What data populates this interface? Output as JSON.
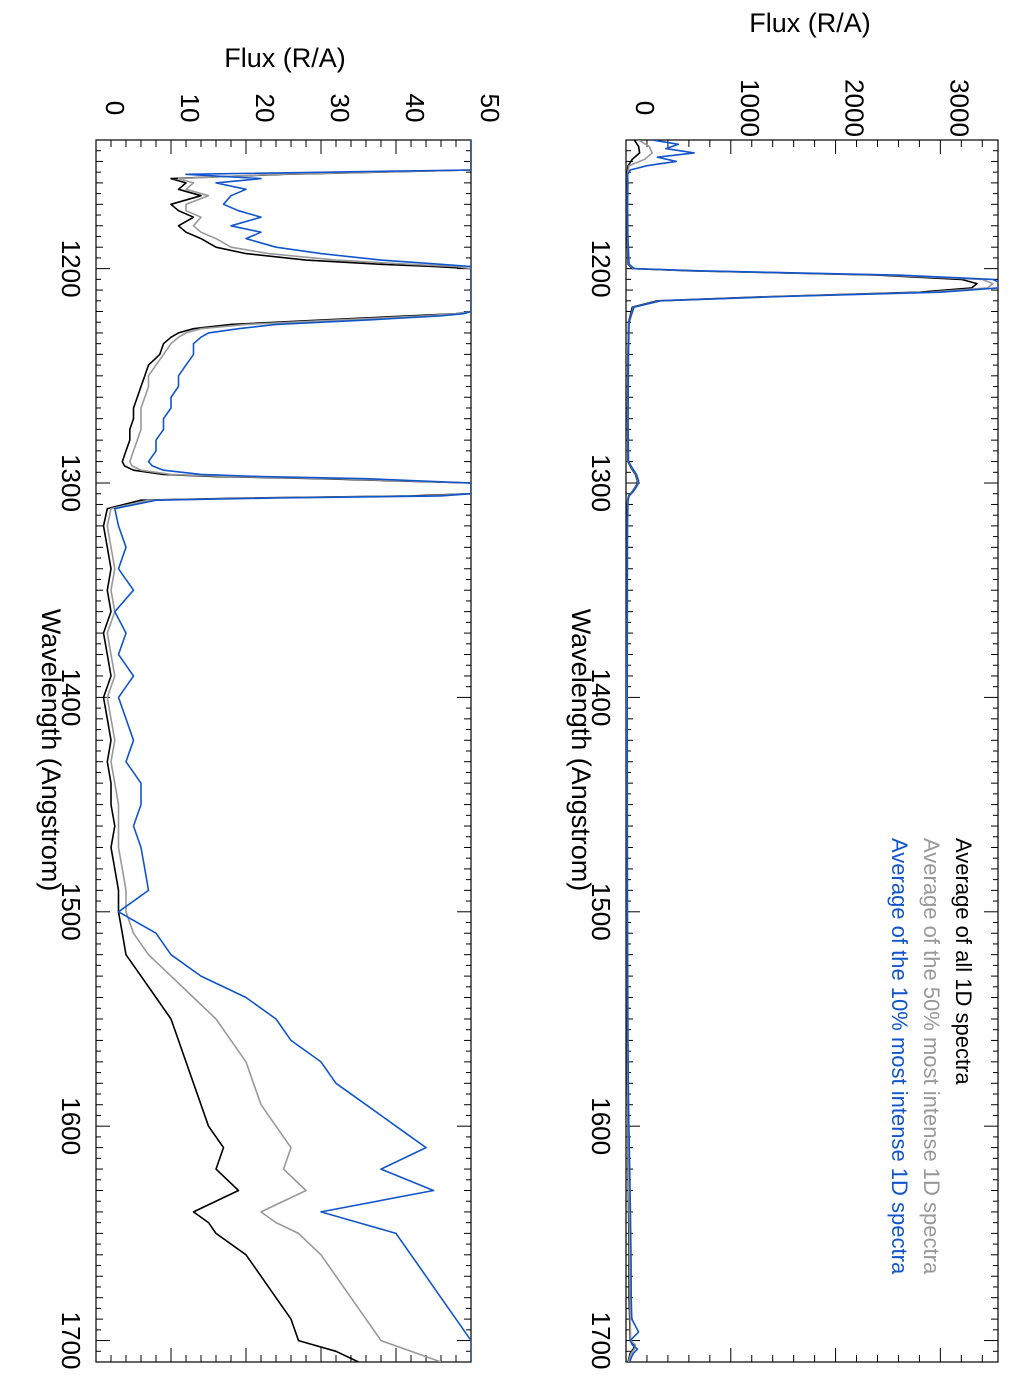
{
  "chart_data": [
    {
      "type": "line",
      "title": "",
      "xlabel": "Wavelength (Angstrom)",
      "ylabel": "Flux (R/A)",
      "xlim": [
        1140,
        1710
      ],
      "ylim": [
        0,
        3550
      ],
      "x_ticks": [
        "1200",
        "1300",
        "1400",
        "1500",
        "1600",
        "1700"
      ],
      "x_tick_values": [
        1200,
        1300,
        1400,
        1500,
        1600,
        1700
      ],
      "y_ticks": [
        "0",
        "1000",
        "2000",
        "3000"
      ],
      "y_tick_values": [
        0,
        1000,
        2000,
        3000
      ],
      "grid": false,
      "legend_placement": "top-right",
      "series": [
        {
          "name": "Average of all 1D spectra",
          "color": "#000000",
          "x": [
            1140,
            1143,
            1146,
            1149,
            1152,
            1156,
            1160,
            1170,
            1185,
            1198,
            1200,
            1201,
            1203,
            1205,
            1207,
            1209,
            1211,
            1213,
            1215,
            1218,
            1225,
            1240,
            1270,
            1290,
            1293,
            1296,
            1299,
            1301,
            1304,
            1306,
            1308,
            1320,
            1400,
            1500,
            1550,
            1580,
            1600,
            1620,
            1640,
            1660,
            1680,
            1690,
            1700,
            1702,
            1704,
            1706,
            1708,
            1710
          ],
          "y": [
            80,
            120,
            130,
            60,
            20,
            10,
            12,
            10,
            12,
            20,
            60,
            600,
            2400,
            3200,
            3350,
            3300,
            2800,
            1400,
            300,
            60,
            25,
            18,
            15,
            18,
            50,
            90,
            110,
            100,
            60,
            25,
            15,
            10,
            8,
            10,
            12,
            14,
            18,
            20,
            25,
            30,
            30,
            35,
            40,
            80,
            70,
            40,
            30,
            20
          ]
        },
        {
          "name": "Average of the 50% most intense 1D spectra",
          "color": "#999999",
          "x": [
            1140,
            1143,
            1146,
            1149,
            1152,
            1156,
            1160,
            1170,
            1185,
            1198,
            1200,
            1201,
            1203,
            1205,
            1207,
            1209,
            1211,
            1213,
            1215,
            1218,
            1225,
            1240,
            1270,
            1290,
            1293,
            1296,
            1299,
            1301,
            1304,
            1306,
            1308,
            1320,
            1400,
            1500,
            1550,
            1580,
            1600,
            1620,
            1640,
            1660,
            1680,
            1690,
            1700,
            1702,
            1704,
            1706,
            1708,
            1710
          ],
          "y": [
            120,
            220,
            250,
            180,
            30,
            12,
            14,
            12,
            14,
            25,
            70,
            650,
            2500,
            3400,
            3500,
            3450,
            2900,
            1450,
            320,
            70,
            28,
            20,
            17,
            20,
            55,
            95,
            115,
            105,
            65,
            28,
            17,
            12,
            9,
            11,
            14,
            16,
            20,
            24,
            30,
            35,
            38,
            40,
            45,
            90,
            80,
            50,
            35,
            25
          ]
        },
        {
          "name": "Average of the 10% most intense 1D spectra",
          "color": "#1155cc",
          "x": [
            1140,
            1142,
            1144,
            1146,
            1148,
            1150,
            1152,
            1154,
            1156,
            1160,
            1170,
            1185,
            1198,
            1200,
            1201,
            1203,
            1205,
            1207,
            1209,
            1211,
            1213,
            1215,
            1218,
            1225,
            1240,
            1270,
            1290,
            1293,
            1296,
            1299,
            1301,
            1304,
            1306,
            1308,
            1320,
            1400,
            1500,
            1550,
            1580,
            1600,
            1620,
            1640,
            1660,
            1680,
            1690,
            1696,
            1700,
            1702,
            1704,
            1706,
            1708,
            1710
          ],
          "y": [
            250,
            500,
            380,
            650,
            300,
            480,
            200,
            40,
            15,
            18,
            15,
            18,
            30,
            80,
            700,
            2600,
            3500,
            3580,
            3550,
            3000,
            1500,
            330,
            75,
            30,
            24,
            20,
            24,
            60,
            100,
            120,
            110,
            70,
            30,
            20,
            14,
            11,
            14,
            18,
            22,
            28,
            35,
            42,
            48,
            50,
            55,
            120,
            40,
            60,
            110,
            70,
            50,
            35
          ]
        }
      ]
    },
    {
      "type": "line",
      "title": "",
      "xlabel": "Wavelength (Angstrom)",
      "ylabel": "Flux (R/A)",
      "xlim": [
        1140,
        1710
      ],
      "ylim": [
        0,
        50
      ],
      "x_ticks": [
        "1200",
        "1300",
        "1400",
        "1500",
        "1600",
        "1700"
      ],
      "x_tick_values": [
        1200,
        1300,
        1400,
        1500,
        1600,
        1700
      ],
      "y_ticks": [
        "0",
        "10",
        "20",
        "30",
        "40",
        "50"
      ],
      "y_tick_values": [
        0,
        10,
        20,
        30,
        40,
        50
      ],
      "grid": false,
      "series": [
        {
          "name": "Average of all 1D spectra",
          "color": "#000000",
          "x": [
            1140,
            1152,
            1154,
            1156,
            1158,
            1160,
            1163,
            1166,
            1170,
            1173,
            1176,
            1180,
            1183,
            1186,
            1190,
            1193,
            1196,
            1198,
            1199,
            1200,
            1220,
            1221,
            1222,
            1224,
            1226,
            1228,
            1230,
            1232,
            1235,
            1240,
            1245,
            1250,
            1255,
            1260,
            1265,
            1270,
            1275,
            1280,
            1285,
            1290,
            1292,
            1294,
            1296,
            1297,
            1298,
            1300,
            1305,
            1306,
            1307,
            1308,
            1312,
            1320,
            1330,
            1340,
            1350,
            1360,
            1370,
            1380,
            1390,
            1400,
            1410,
            1420,
            1430,
            1440,
            1450,
            1460,
            1470,
            1480,
            1490,
            1500,
            1510,
            1520,
            1530,
            1540,
            1550,
            1560,
            1570,
            1580,
            1590,
            1600,
            1610,
            1620,
            1630,
            1640,
            1645,
            1650,
            1660,
            1670,
            1680,
            1690,
            1700,
            1705,
            1710
          ],
          "y": [
            50,
            50,
            50,
            25,
            10,
            12,
            11,
            14,
            10,
            11,
            13,
            11,
            12,
            14,
            16,
            20,
            28,
            38,
            45,
            50,
            50,
            48,
            42,
            30,
            18,
            13,
            11,
            10,
            9,
            8.5,
            7,
            6.5,
            6,
            5.5,
            5,
            5,
            4.5,
            4.5,
            4,
            3.5,
            3.8,
            5,
            9,
            16,
            30,
            50,
            50,
            42,
            20,
            6,
            1.5,
            1,
            1.5,
            2,
            1.5,
            2,
            1,
            1.5,
            2,
            1,
            1.5,
            2,
            1.5,
            2,
            2,
            2.5,
            2,
            2.5,
            3,
            3,
            3.5,
            4,
            6,
            8,
            10,
            11,
            12,
            13,
            14,
            15,
            17,
            16,
            19,
            13,
            15,
            16,
            20,
            22,
            24,
            26,
            27,
            32,
            35
          ]
        },
        {
          "name": "Average of the 50% most intense 1D spectra",
          "color": "#999999",
          "x": [
            1140,
            1152,
            1154,
            1156,
            1158,
            1160,
            1163,
            1166,
            1170,
            1173,
            1176,
            1180,
            1183,
            1186,
            1190,
            1193,
            1196,
            1198,
            1199,
            1200,
            1220,
            1221,
            1222,
            1224,
            1226,
            1228,
            1230,
            1232,
            1235,
            1240,
            1245,
            1250,
            1255,
            1260,
            1265,
            1270,
            1275,
            1280,
            1285,
            1290,
            1292,
            1294,
            1296,
            1297,
            1298,
            1300,
            1305,
            1306,
            1307,
            1308,
            1312,
            1320,
            1330,
            1340,
            1350,
            1360,
            1370,
            1380,
            1390,
            1400,
            1410,
            1420,
            1430,
            1440,
            1450,
            1460,
            1470,
            1480,
            1490,
            1500,
            1510,
            1520,
            1530,
            1540,
            1550,
            1560,
            1570,
            1580,
            1590,
            1600,
            1610,
            1620,
            1630,
            1640,
            1645,
            1650,
            1660,
            1670,
            1680,
            1690,
            1700,
            1705,
            1710
          ],
          "y": [
            50,
            50,
            50,
            24,
            11,
            13,
            12,
            15,
            12,
            12,
            14,
            13,
            14,
            16,
            18,
            23,
            32,
            42,
            48,
            50,
            50,
            48,
            44,
            32,
            20,
            14,
            12,
            11,
            10,
            9,
            8,
            7,
            7,
            6.5,
            6,
            6,
            6,
            5.5,
            5,
            4.5,
            4.8,
            6,
            10,
            18,
            32,
            50,
            50,
            44,
            22,
            7,
            2,
            1.5,
            2,
            2.5,
            2,
            2.5,
            1.5,
            2,
            2.5,
            1.5,
            2,
            2.5,
            2,
            2.5,
            3,
            3,
            3,
            3.5,
            4,
            4,
            5,
            7,
            10,
            13,
            16,
            18,
            20,
            21,
            22,
            24,
            26,
            25,
            28,
            22,
            24,
            27,
            30,
            32,
            34,
            36,
            38,
            42,
            46
          ]
        },
        {
          "name": "Average of the 10% most intense 1D spectra",
          "color": "#1155cc",
          "x": [
            1140,
            1152,
            1154,
            1156,
            1158,
            1160,
            1163,
            1166,
            1170,
            1173,
            1176,
            1180,
            1183,
            1186,
            1190,
            1193,
            1196,
            1198,
            1199,
            1200,
            1220,
            1221,
            1222,
            1224,
            1226,
            1228,
            1230,
            1232,
            1235,
            1240,
            1245,
            1250,
            1255,
            1260,
            1265,
            1270,
            1275,
            1280,
            1285,
            1290,
            1292,
            1294,
            1296,
            1297,
            1298,
            1300,
            1305,
            1306,
            1307,
            1308,
            1312,
            1320,
            1330,
            1340,
            1350,
            1360,
            1370,
            1380,
            1390,
            1400,
            1410,
            1420,
            1430,
            1440,
            1450,
            1460,
            1470,
            1480,
            1490,
            1500,
            1510,
            1520,
            1530,
            1540,
            1550,
            1560,
            1570,
            1580,
            1590,
            1600,
            1610,
            1620,
            1630,
            1640,
            1645,
            1650,
            1660,
            1670,
            1680,
            1690,
            1700,
            1705,
            1710
          ],
          "y": [
            50,
            50,
            50,
            12,
            22,
            16,
            20,
            18,
            17,
            19,
            22,
            18,
            22,
            20,
            24,
            30,
            38,
            46,
            50,
            50,
            50,
            49,
            46,
            36,
            24,
            19,
            15,
            14,
            13,
            13,
            12,
            11,
            11,
            10,
            10,
            9,
            9,
            8,
            8,
            7,
            7.5,
            9,
            14,
            22,
            36,
            50,
            50,
            46,
            24,
            8,
            2.5,
            3,
            4,
            3,
            5,
            2.5,
            4,
            3,
            5,
            3,
            4,
            5,
            4,
            6,
            6,
            5,
            6,
            6.5,
            7,
            3,
            8,
            10,
            14,
            20,
            24,
            26,
            30,
            32,
            36,
            40,
            44,
            38,
            45,
            30,
            35,
            40,
            42,
            44,
            46,
            48,
            50,
            50,
            50
          ]
        }
      ]
    }
  ],
  "legend": [
    {
      "label": "Average of all 1D spectra",
      "color": "#000000"
    },
    {
      "label": "Average of the 50% most intense 1D spectra",
      "color": "#999999"
    },
    {
      "label": "Average of the 10% most intense 1D spectra",
      "color": "#1155cc"
    }
  ]
}
